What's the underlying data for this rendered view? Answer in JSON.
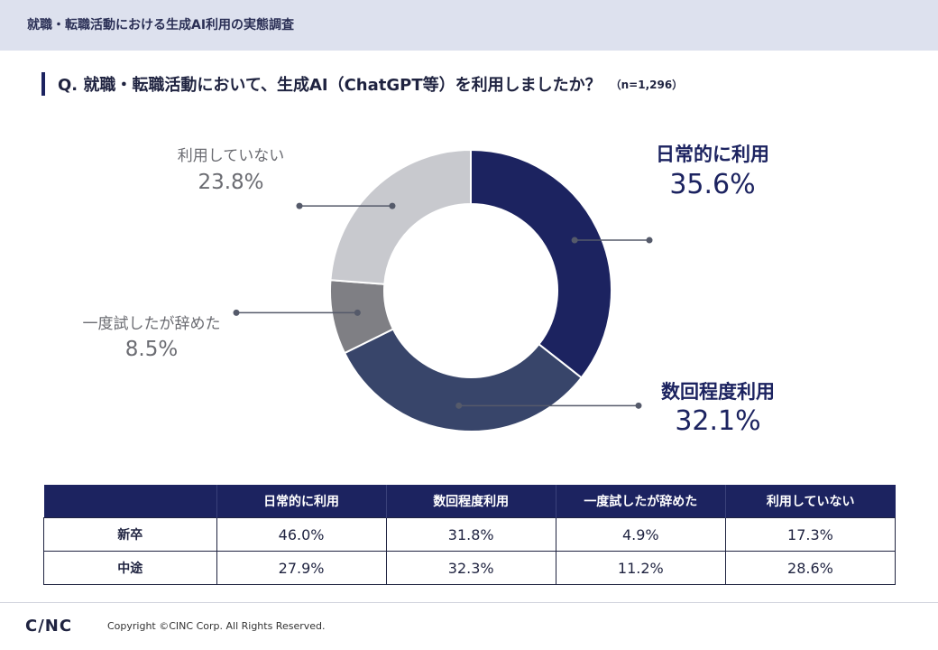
{
  "header": {
    "title": "就職・転職活動における生成AI利用の実態調査"
  },
  "question": {
    "text": "Q. 就職・転職活動において、生成AI（ChatGPT等）を利用しましたか？",
    "n": "（n=1,296）"
  },
  "chart_data": {
    "type": "pie",
    "donut": true,
    "title": "",
    "categories": [
      "日常的に利用",
      "数回程度利用",
      "一度試したが辞めた",
      "利用していない"
    ],
    "values": [
      35.6,
      32.1,
      8.5,
      23.8
    ],
    "value_labels": [
      "35.6%",
      "32.1%",
      "8.5%",
      "23.8%"
    ],
    "colors": [
      "#1c2360",
      "#38456a",
      "#7f7f84",
      "#c8c9ce"
    ],
    "label_colors": [
      "#1c2360",
      "#1c2360",
      "#6b6c72",
      "#6b6c72"
    ],
    "legend": "none"
  },
  "table": {
    "headers": [
      "",
      "日常的に利用",
      "数回程度利用",
      "一度試したが辞めた",
      "利用していない"
    ],
    "rows": [
      {
        "label": "新卒",
        "values": [
          "46.0%",
          "31.8%",
          "4.9%",
          "17.3%"
        ]
      },
      {
        "label": "中途",
        "values": [
          "27.9%",
          "32.3%",
          "11.2%",
          "28.6%"
        ]
      }
    ]
  },
  "footer": {
    "logo": "C/NC",
    "copyright": "Copyright ©CINC Corp. All Rights Reserved."
  }
}
